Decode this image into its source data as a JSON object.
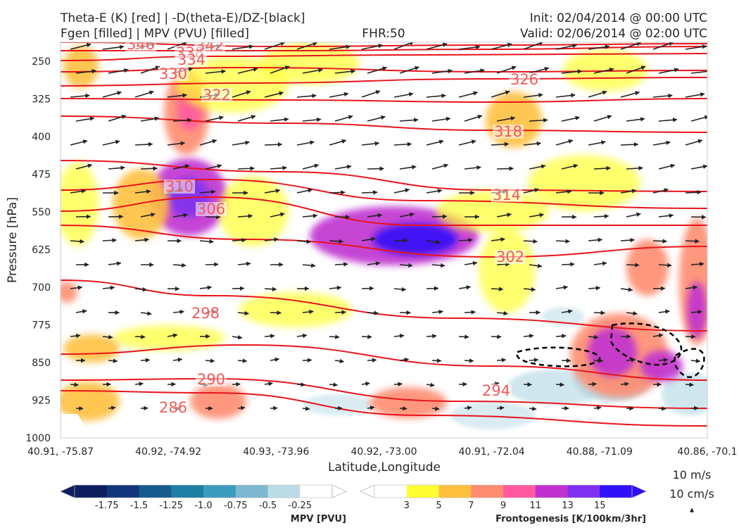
{
  "header": {
    "title_left_1": "Theta-E (K) [red] | -D(theta-E)/DZ-[black]",
    "title_left_2": "Fgen [filled] | MPV (PVU) [filled]",
    "title_center": "FHR:50",
    "title_right_1": "Init: 02/04/2014 @ 00:00 UTC",
    "title_right_2": "Valid: 02/06/2014 @ 02:00 UTC"
  },
  "chart_data": {
    "type": "cross-section",
    "xlabel": "Latitude,Longitude",
    "ylabel": "Pressure [hPa]",
    "ylim": [
      1000,
      200
    ],
    "x_ticks": [
      "40.91, -75.87",
      "40.92, -74.92",
      "40.93, -73.96",
      "40.92, -73.00",
      "40.91, -72.04",
      "40.88, -71.09",
      "40.86, -70.1"
    ],
    "y_ticks": [
      250,
      325,
      400,
      475,
      550,
      625,
      700,
      775,
      850,
      925,
      1000
    ],
    "theta_e_contour_labels": [
      346,
      338,
      342,
      334,
      330,
      326,
      322,
      318,
      310,
      314,
      306,
      302,
      298,
      290,
      294,
      286
    ],
    "colorbars": [
      {
        "title": "MPV [PVU]",
        "ticks": [
          "-1.75",
          "-1.5",
          "-1.25",
          "-1.0",
          "-0.75",
          "-0.5",
          "-0.25"
        ],
        "colors": [
          "#0c1e5e",
          "#12367a",
          "#155b8e",
          "#1e7ea3",
          "#3b9bbf",
          "#7eb8d0",
          "#bcdce5",
          "#ffffff"
        ]
      },
      {
        "title": "Frontogenesis [K/100km/3hr]",
        "ticks": [
          "3",
          "5",
          "7",
          "9",
          "11",
          "13",
          "15"
        ],
        "colors": [
          "#ffffff",
          "#ffff33",
          "#ffc040",
          "#ff8c70",
          "#ff5aa0",
          "#c030d0",
          "#8030f0",
          "#3010f8"
        ]
      }
    ],
    "vector_key": {
      "wind": "10 m/s",
      "vertical": "10 cm/s"
    }
  }
}
